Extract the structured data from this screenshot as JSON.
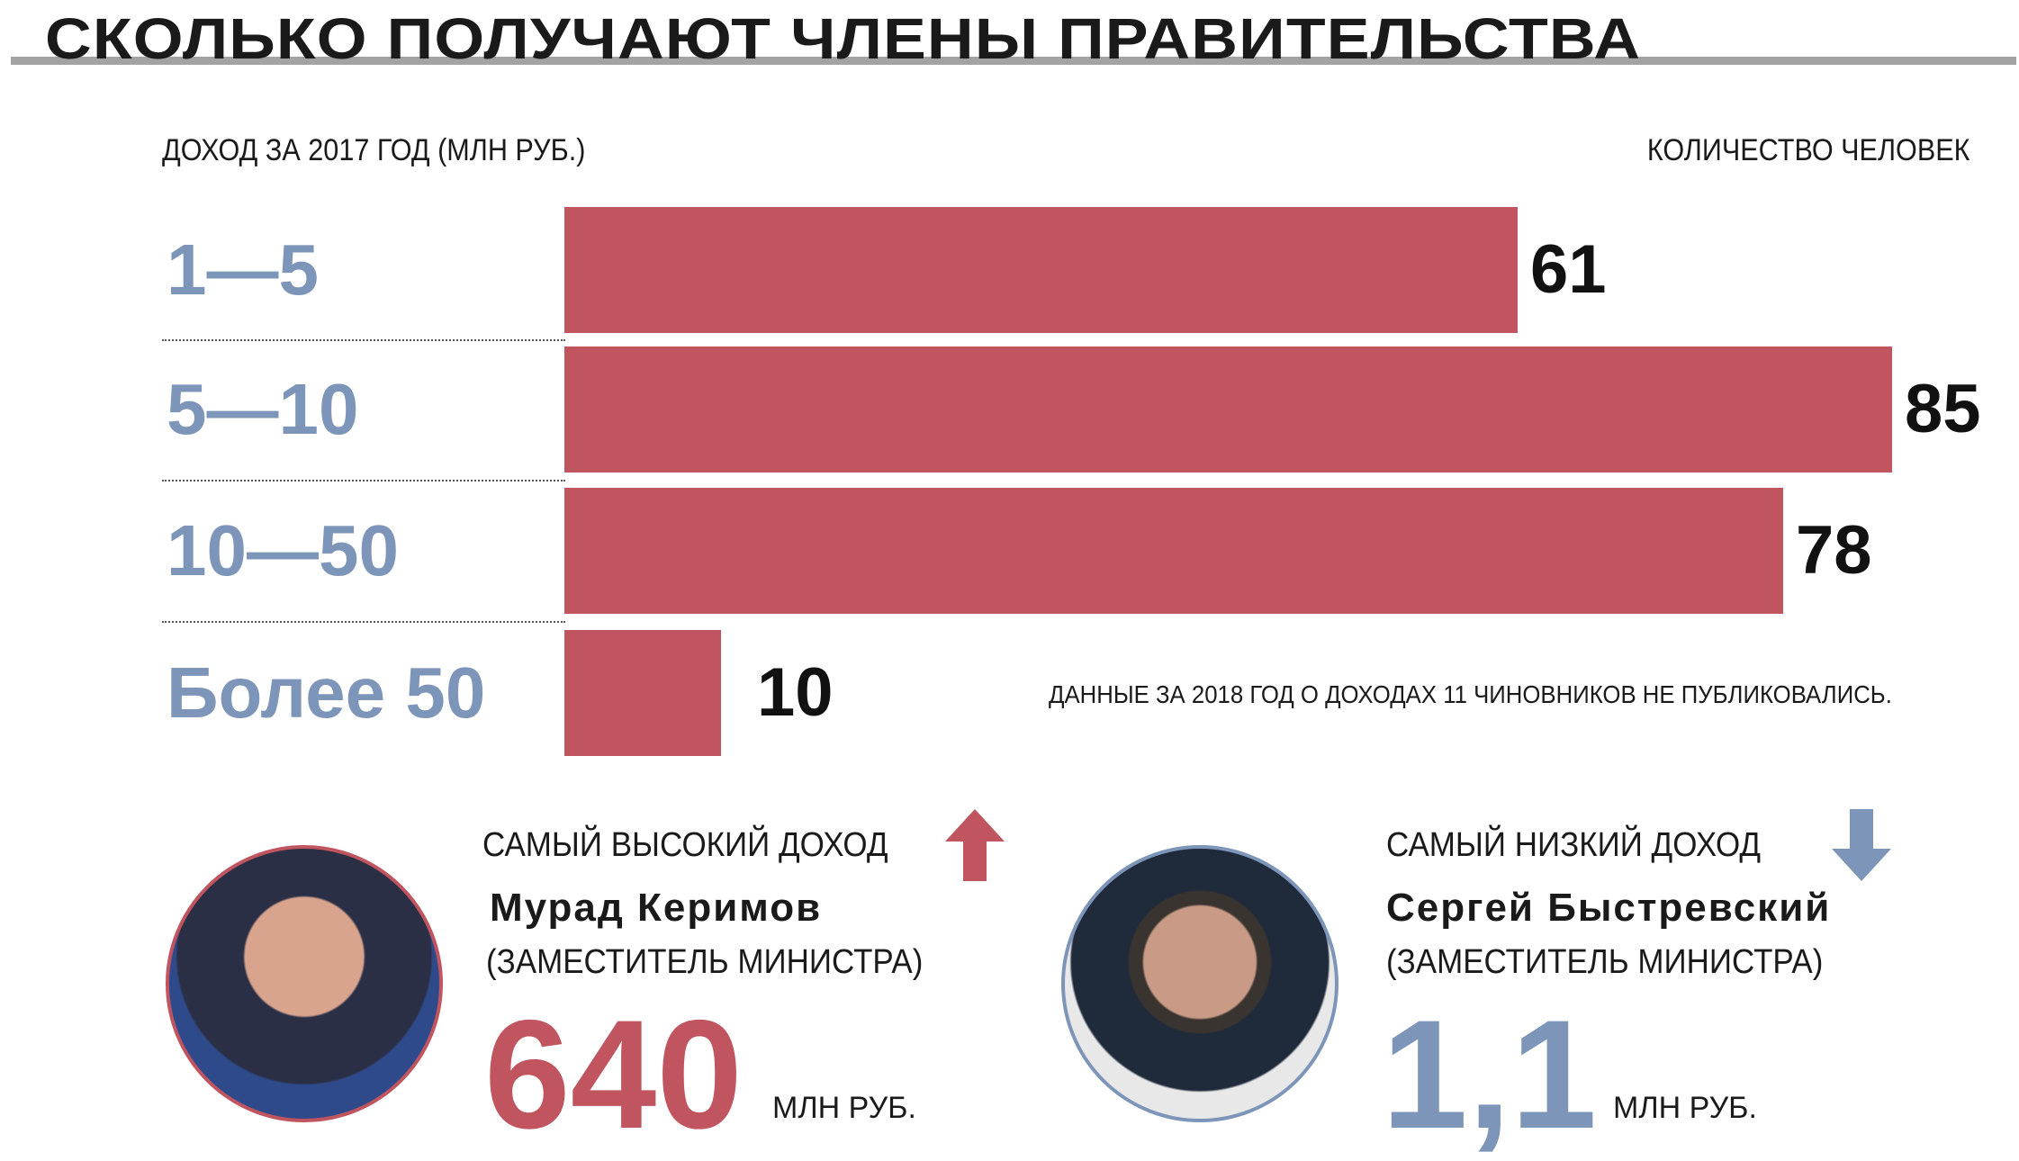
{
  "title": "СКОЛЬКО ПОЛУЧАЮТ ЧЛЕНЫ ПРАВИТЕЛЬСТВА",
  "chart_data": {
    "type": "bar",
    "orientation": "horizontal",
    "xlabel": "КОЛИЧЕСТВО ЧЕЛОВЕК",
    "ylabel": "ДОХОД ЗА 2017 ГОД (МЛН РУБ.)",
    "categories": [
      "1—5",
      "5—10",
      "10—50",
      "Более 50"
    ],
    "values": [
      61,
      85,
      78,
      10
    ],
    "note": "ДАННЫЕ ЗА 2018 ГОД О ДОХОДАХ 11 ЧИНОВНИКОВ НЕ ПУБЛИКОВАЛИСЬ."
  },
  "colors": {
    "bar": "#c05560",
    "category": "#7e95ba",
    "high": "#c05560",
    "low": "#7e95ba"
  },
  "highest": {
    "label": "САМЫЙ ВЫСОКИЙ ДОХОД",
    "name": "Мурад Керимов",
    "role": "(ЗАМЕСТИТЕЛЬ МИНИСТРА)",
    "amount": "640",
    "unit": "МЛН РУБ."
  },
  "lowest": {
    "label": "САМЫЙ НИЗКИЙ ДОХОД",
    "name": "Сергей Быстревский",
    "role": "(ЗАМЕСТИТЕЛЬ МИНИСТРА)",
    "amount": "1,1",
    "unit": "МЛН РУБ."
  }
}
